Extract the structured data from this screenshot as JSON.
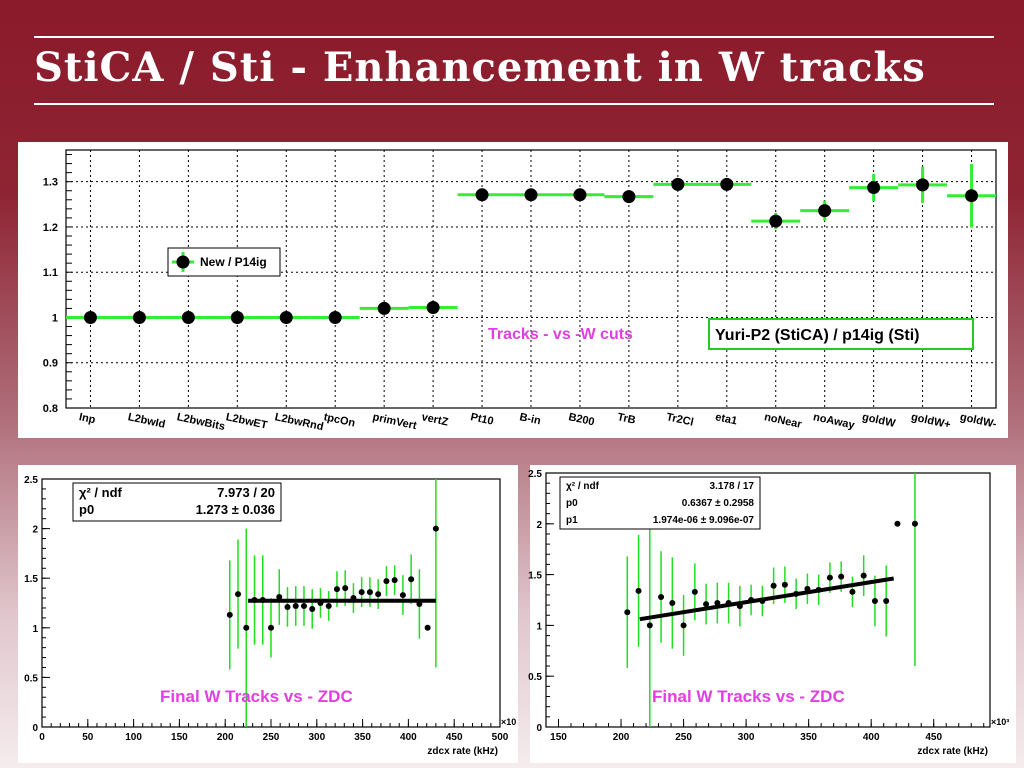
{
  "slide": {
    "title": "StiCA / Sti - Enhancement in W tracks"
  },
  "chart_data": [
    {
      "type": "scatter",
      "categories": [
        "Inp",
        "L2bwId",
        "L2bwBits",
        "L2bwET",
        "L2bwRnd",
        "tpcOn",
        "primVert",
        "vertZ",
        "Pt10",
        "B-in",
        "B200",
        "TrB",
        "Tr2Cl",
        "eta1",
        "noNear",
        "noAway",
        "goldW",
        "goldW+",
        "goldW-"
      ],
      "values": [
        1.0,
        1.0,
        1.0,
        1.0,
        1.0,
        1.0,
        1.02,
        1.022,
        1.271,
        1.271,
        1.271,
        1.267,
        1.294,
        1.294,
        1.213,
        1.236,
        1.287,
        1.293,
        1.269
      ],
      "errors": [
        0.002,
        0.002,
        0.002,
        0.002,
        0.002,
        0.002,
        0.006,
        0.006,
        0.008,
        0.008,
        0.008,
        0.01,
        0.01,
        0.01,
        0.018,
        0.022,
        0.03,
        0.04,
        0.07
      ],
      "ylim": [
        0.8,
        1.37
      ],
      "yticks": [
        "0.8",
        "0.9",
        "1",
        "1.1",
        "1.2",
        "1.3"
      ],
      "grid": true,
      "legend": "New / P14ig",
      "legend_position": "left-middle",
      "annotation": "Tracks - vs -W cuts",
      "annotation_color": "#e040e0",
      "label_box": "Yuri-P2 (StiCA) / p14ig (Sti)",
      "marker_color": "#000000",
      "bar_color": "#33ee33"
    },
    {
      "type": "scatter",
      "x": [
        205,
        214,
        223,
        232,
        241,
        250,
        259,
        268,
        277,
        286,
        295,
        304,
        313,
        322,
        331,
        340,
        349,
        358,
        367,
        376,
        385,
        394,
        403,
        412,
        421,
        430
      ],
      "y": [
        1.13,
        1.34,
        1.0,
        1.28,
        1.28,
        1.0,
        1.31,
        1.21,
        1.22,
        1.22,
        1.19,
        1.25,
        1.22,
        1.39,
        1.4,
        1.3,
        1.36,
        1.36,
        1.34,
        1.47,
        1.48,
        1.33,
        1.49,
        1.24,
        1.0,
        2.0
      ],
      "yerr": [
        0.55,
        0.55,
        1.0,
        0.45,
        0.45,
        0.3,
        0.28,
        0.2,
        0.2,
        0.2,
        0.2,
        0.15,
        0.15,
        0.18,
        0.18,
        0.15,
        0.15,
        0.15,
        0.15,
        0.15,
        0.15,
        0.2,
        0.25,
        0.35,
        0.0,
        1.4
      ],
      "xlim": [
        0,
        500
      ],
      "ylim": [
        0,
        2.5
      ],
      "xticks": [
        "0",
        "50",
        "100",
        "150",
        "200",
        "250",
        "300",
        "350",
        "400",
        "450",
        "500"
      ],
      "yticks": [
        "0",
        "0.5",
        "1",
        "1.5",
        "2",
        "2.5"
      ],
      "xlabel": "zdcx rate (kHz)",
      "x_exponent": "×10",
      "fit": {
        "type": "constant",
        "x_range": [
          225,
          430
        ],
        "value": 1.273
      },
      "stats": {
        "chi2_label": "χ² / ndf",
        "chi2_value": "7.973 / 20",
        "p0_label": "p0",
        "p0_value": "1.273",
        "p0_pm": "±",
        "p0_error": "0.036"
      },
      "annotation": "Final W Tracks  vs - ZDC",
      "annotation_color": "#e040e0"
    },
    {
      "type": "scatter",
      "x": [
        205,
        214,
        223,
        232,
        241,
        250,
        259,
        268,
        277,
        286,
        295,
        304,
        313,
        322,
        331,
        340,
        349,
        358,
        367,
        376,
        385,
        394,
        403,
        412,
        421,
        435
      ],
      "y": [
        1.13,
        1.34,
        1.0,
        1.28,
        1.22,
        1.0,
        1.33,
        1.21,
        1.22,
        1.22,
        1.19,
        1.25,
        1.24,
        1.39,
        1.4,
        1.31,
        1.36,
        1.35,
        1.47,
        1.48,
        1.33,
        1.49,
        1.24,
        1.24,
        2.0,
        2.0
      ],
      "yerr": [
        0.55,
        0.55,
        1.0,
        0.45,
        0.45,
        0.3,
        0.28,
        0.2,
        0.2,
        0.2,
        0.2,
        0.15,
        0.15,
        0.18,
        0.18,
        0.15,
        0.15,
        0.15,
        0.15,
        0.15,
        0.15,
        0.2,
        0.25,
        0.35,
        0.0,
        1.4
      ],
      "xlim": [
        140,
        495
      ],
      "ylim": [
        0,
        2.5
      ],
      "xticks": [
        "150",
        "200",
        "250",
        "300",
        "350",
        "400",
        "450"
      ],
      "yticks": [
        "0",
        "0.5",
        "1",
        "1.5",
        "2",
        "2.5"
      ],
      "xlabel": "zdcx rate (kHz)",
      "x_exponent": "×10³",
      "fit": {
        "type": "linear",
        "x_range": [
          215,
          418
        ],
        "p0": 0.6367,
        "p1": 0.001974
      },
      "stats": {
        "chi2_label": "χ² / ndf",
        "chi2_value": "3.178 / 17",
        "p0_label": "p0",
        "p0_value": "0.6367",
        "p0_pm": "±",
        "p0_error": "0.2958",
        "p1_label": "p1",
        "p1_value": "1.974e-06",
        "p1_pm": "±",
        "p1_error": "9.096e-07"
      },
      "annotation": "Final W Tracks  vs - ZDC",
      "annotation_color": "#e040e0"
    }
  ]
}
